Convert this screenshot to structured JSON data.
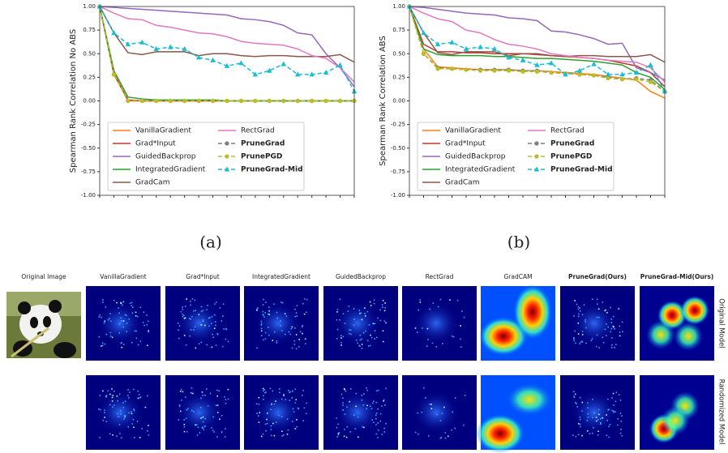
{
  "chart_data": [
    {
      "type": "line",
      "ylabel": "Spearman Rank Correlation No ABS",
      "categories": [
        null,
        null,
        null,
        null,
        null,
        null,
        null,
        null,
        null,
        null,
        null,
        null,
        null,
        null,
        null,
        null,
        null,
        null,
        null
      ],
      "ylim": [
        -1,
        1
      ],
      "yticks": [
        {
          "value": -1,
          "label": "-1.00"
        },
        {
          "value": -0.75,
          "label": "-0.75"
        },
        {
          "value": -0.5,
          "label": "-0.50"
        },
        {
          "value": -0.25,
          "label": "-0.25"
        },
        {
          "value": 0,
          "label": "0.00"
        },
        {
          "value": 0.25,
          "label": "0.25"
        },
        {
          "value": 0.5,
          "label": "0.50"
        },
        {
          "value": 0.75,
          "label": "0.75"
        },
        {
          "value": 1,
          "label": "1.00"
        }
      ],
      "grid": false,
      "legend": "lower left",
      "series": [
        {
          "name": "VanillaGradient",
          "color": "#ff7f0e",
          "values": [
            1,
            0.3,
            0.0,
            0,
            0,
            0,
            0,
            0,
            0,
            0,
            0,
            0,
            0,
            0,
            0,
            0,
            0,
            0,
            0
          ]
        },
        {
          "name": "Grad*Input",
          "color": "#c0392b",
          "values": [
            1,
            0.28,
            0.01,
            0,
            0,
            0,
            0,
            0,
            0,
            0,
            0,
            0,
            0,
            0,
            0,
            0,
            0,
            0,
            0
          ]
        },
        {
          "name": "GuidedBackprop",
          "color": "#9467bd",
          "values": [
            1,
            0.99,
            0.98,
            0.97,
            0.96,
            0.95,
            0.94,
            0.93,
            0.92,
            0.91,
            0.87,
            0.86,
            0.84,
            0.8,
            0.72,
            0.7,
            0.5,
            0.35,
            0.15
          ]
        },
        {
          "name": "IntegratedGradient",
          "color": "#2ca02c",
          "values": [
            1,
            0.32,
            0.04,
            0.02,
            0.01,
            0.01,
            0.01,
            0.01,
            0.01,
            0,
            0,
            0,
            0,
            0,
            0,
            0,
            0,
            0,
            0
          ]
        },
        {
          "name": "GradCam",
          "color": "#8c564b",
          "values": [
            1,
            0.72,
            0.51,
            0.49,
            0.52,
            0.52,
            0.52,
            0.48,
            0.5,
            0.5,
            0.48,
            0.47,
            0.48,
            0.48,
            0.47,
            0.47,
            0.47,
            0.49,
            0.41
          ]
        },
        {
          "name": "RectGrad",
          "color": "#e377c2",
          "values": [
            1,
            0.93,
            0.87,
            0.86,
            0.8,
            0.78,
            0.75,
            0.72,
            0.71,
            0.68,
            0.63,
            0.61,
            0.6,
            0.59,
            0.55,
            0.48,
            0.45,
            0.35,
            0.2
          ]
        },
        {
          "name": "PruneGrad",
          "color": "#7f7f7f",
          "dashed": true,
          "marker": "circle",
          "bold": true,
          "values": [
            1,
            0.28,
            0,
            0,
            0,
            0,
            0,
            0,
            0,
            0,
            0,
            0,
            0,
            0,
            0,
            0,
            0,
            0,
            0
          ]
        },
        {
          "name": "PrunePGD",
          "color": "#bcbd22",
          "dashed": true,
          "marker": "circle",
          "bold": true,
          "values": [
            1,
            0.28,
            0,
            0,
            0,
            0,
            0,
            0,
            0,
            0,
            0,
            0,
            0,
            0,
            0,
            0,
            0,
            0,
            0
          ]
        },
        {
          "name": "PruneGrad-Mid",
          "color": "#17becf",
          "dashed": true,
          "marker": "triangle",
          "bold": true,
          "values": [
            1,
            0.72,
            0.6,
            0.62,
            0.55,
            0.57,
            0.55,
            0.46,
            0.43,
            0.37,
            0.4,
            0.28,
            0.32,
            0.39,
            0.28,
            0.28,
            0.3,
            0.38,
            0.1
          ]
        }
      ]
    },
    {
      "type": "line",
      "ylabel": "Spearman Rank Correlation ABS",
      "categories": [
        null,
        null,
        null,
        null,
        null,
        null,
        null,
        null,
        null,
        null,
        null,
        null,
        null,
        null,
        null,
        null,
        null,
        null,
        null
      ],
      "ylim": [
        -1,
        1
      ],
      "yticks": [
        {
          "value": -1,
          "label": "-1.00"
        },
        {
          "value": -0.75,
          "label": "-0.75"
        },
        {
          "value": -0.5,
          "label": "-0.50"
        },
        {
          "value": -0.25,
          "label": "-0.25"
        },
        {
          "value": 0,
          "label": "0.00"
        },
        {
          "value": 0.25,
          "label": "0.25"
        },
        {
          "value": 0.5,
          "label": "0.50"
        },
        {
          "value": 0.75,
          "label": "0.75"
        },
        {
          "value": 1,
          "label": "1.00"
        }
      ],
      "grid": false,
      "legend": "lower left",
      "series": [
        {
          "name": "VanillaGradient",
          "color": "#ff7f0e",
          "values": [
            1,
            0.55,
            0.36,
            0.35,
            0.34,
            0.33,
            0.33,
            0.33,
            0.32,
            0.32,
            0.31,
            0.3,
            0.29,
            0.28,
            0.26,
            0.24,
            0.22,
            0.1,
            0.03
          ]
        },
        {
          "name": "Grad*Input",
          "color": "#c0392b",
          "values": [
            1,
            0.6,
            0.52,
            0.52,
            0.51,
            0.51,
            0.5,
            0.5,
            0.5,
            0.49,
            0.48,
            0.47,
            0.46,
            0.45,
            0.43,
            0.4,
            0.37,
            0.3,
            0.15
          ]
        },
        {
          "name": "GuidedBackprop",
          "color": "#9467bd",
          "values": [
            1,
            0.99,
            0.97,
            0.95,
            0.93,
            0.92,
            0.91,
            0.88,
            0.87,
            0.85,
            0.74,
            0.73,
            0.7,
            0.66,
            0.6,
            0.61,
            0.35,
            0.3,
            0.22
          ]
        },
        {
          "name": "IntegratedGradient",
          "color": "#2ca02c",
          "values": [
            1,
            0.55,
            0.49,
            0.48,
            0.48,
            0.48,
            0.47,
            0.47,
            0.46,
            0.45,
            0.45,
            0.44,
            0.43,
            0.42,
            0.4,
            0.38,
            0.3,
            0.25,
            0.12
          ]
        },
        {
          "name": "GradCam",
          "color": "#8c564b",
          "values": [
            1,
            0.72,
            0.51,
            0.49,
            0.52,
            0.52,
            0.52,
            0.48,
            0.5,
            0.5,
            0.48,
            0.47,
            0.48,
            0.48,
            0.47,
            0.47,
            0.47,
            0.49,
            0.41
          ]
        },
        {
          "name": "RectGrad",
          "color": "#e377c2",
          "values": [
            1,
            0.93,
            0.87,
            0.84,
            0.75,
            0.72,
            0.65,
            0.6,
            0.58,
            0.55,
            0.5,
            0.48,
            0.46,
            0.45,
            0.43,
            0.42,
            0.41,
            0.35,
            0.2
          ]
        },
        {
          "name": "PruneGrad",
          "color": "#7f7f7f",
          "dashed": true,
          "marker": "circle",
          "bold": true,
          "values": [
            1,
            0.5,
            0.35,
            0.34,
            0.33,
            0.33,
            0.33,
            0.33,
            0.32,
            0.32,
            0.3,
            0.29,
            0.28,
            0.27,
            0.25,
            0.23,
            0.24,
            0.22,
            0.1
          ]
        },
        {
          "name": "PrunePGD",
          "color": "#bcbd22",
          "dashed": true,
          "marker": "circle",
          "bold": true,
          "values": [
            1,
            0.5,
            0.34,
            0.34,
            0.33,
            0.32,
            0.32,
            0.32,
            0.31,
            0.31,
            0.3,
            0.29,
            0.28,
            0.27,
            0.24,
            0.23,
            0.23,
            0.2,
            0.1
          ]
        },
        {
          "name": "PruneGrad-Mid",
          "color": "#17becf",
          "dashed": true,
          "marker": "triangle",
          "bold": true,
          "values": [
            1,
            0.72,
            0.6,
            0.62,
            0.55,
            0.57,
            0.55,
            0.46,
            0.43,
            0.38,
            0.4,
            0.28,
            0.32,
            0.39,
            0.28,
            0.28,
            0.3,
            0.38,
            0.1
          ]
        }
      ]
    }
  ],
  "figure": {
    "captions": [
      "(a)",
      "(b)"
    ],
    "columns": [
      "Original Image",
      "VanillaGradient",
      "Grad*Input",
      "IntegratedGradient",
      "GuidedBackprop",
      "RectGrad",
      "GradCAM",
      "PruneGrad(Ours)",
      "PruneGrad-Mid(Ours)"
    ],
    "rows": [
      "Original Model",
      "Randomized Model"
    ]
  }
}
